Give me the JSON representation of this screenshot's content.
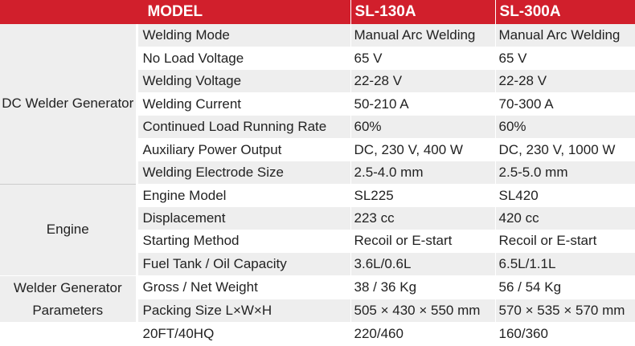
{
  "header": {
    "model": "MODEL",
    "col_a": "SL-130A",
    "col_b": "SL-300A"
  },
  "groups": [
    {
      "label": "DC Welder Generator",
      "rowspan": 7
    },
    {
      "label": "Engine",
      "rowspan": 4
    },
    {
      "label": "Welder Generator Parameters",
      "rowspan": 2
    },
    {
      "label": "",
      "rowspan": 1
    }
  ],
  "rows": [
    {
      "param": "Welding Mode",
      "a": "Manual Arc Welding",
      "b": "Manual Arc Welding"
    },
    {
      "param": "No Load Voltage",
      "a": "65 V",
      "b": "65 V"
    },
    {
      "param": "Welding Voltage",
      "a": "22-28 V",
      "b": "22-28 V"
    },
    {
      "param": "Welding Current",
      "a": "50-210 A",
      "b": "70-300 A"
    },
    {
      "param": "Continued Load Running Rate",
      "a": "60%",
      "b": "60%"
    },
    {
      "param": "Auxiliary Power Output",
      "a": "DC, 230 V, 400 W",
      "b": "DC, 230 V, 1000 W"
    },
    {
      "param": "Welding Electrode Size",
      "a": "2.5-4.0 mm",
      "b": "2.5-5.0 mm"
    },
    {
      "param": "Engine Model",
      "a": "SL225",
      "b": "SL420"
    },
    {
      "param": "Displacement",
      "a": "223 cc",
      "b": "420 cc"
    },
    {
      "param": "Starting Method",
      "a": "Recoil or E-start",
      "b": "Recoil or E-start"
    },
    {
      "param": "Fuel Tank / Oil Capacity",
      "a": "3.6L/0.6L",
      "b": "6.5L/1.1L"
    },
    {
      "param": "Gross / Net Weight",
      "a": "38 / 36 Kg",
      "b": "56 / 54 Kg"
    },
    {
      "param": "Packing Size  L×W×H",
      "a": "505 × 430 × 550 mm",
      "b": "570 × 535 × 570 mm"
    },
    {
      "param": "20FT/40HQ",
      "a": "220/460",
      "b": "160/360"
    }
  ],
  "colors": {
    "header_bg": "#d11f2c",
    "header_text": "#ffffff",
    "row_shade": "#eeeeee",
    "row_plain": "#ffffff"
  }
}
